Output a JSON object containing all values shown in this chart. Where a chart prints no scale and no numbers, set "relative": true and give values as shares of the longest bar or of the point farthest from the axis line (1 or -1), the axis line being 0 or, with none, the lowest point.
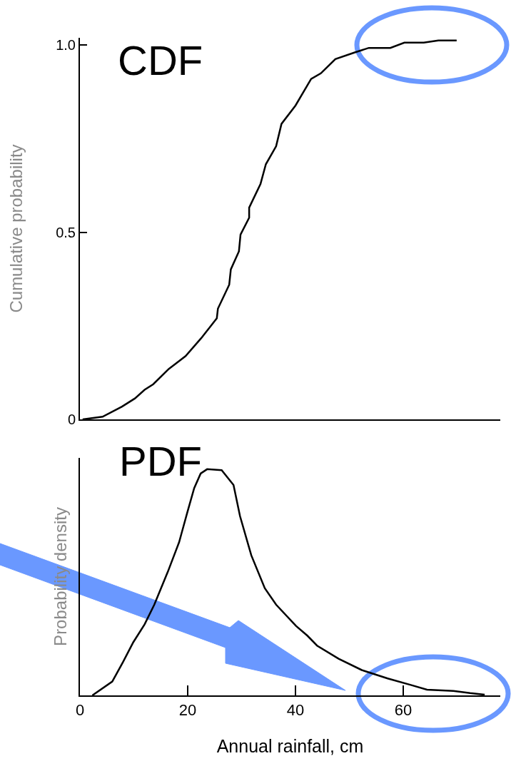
{
  "chart_data": [
    {
      "type": "line",
      "title": "CDF",
      "ylabel": "Cumulative probability",
      "xlim": [
        0,
        78
      ],
      "ylim": [
        0,
        1.02
      ],
      "yticks": [
        0,
        0.5,
        {
          "value": 1,
          "label": "1.0"
        }
      ],
      "tick_labels": "y",
      "grid": false,
      "marker": "none",
      "line_style": "solid",
      "x": [
        0.5,
        4.2,
        7.8,
        10.2,
        12.0,
        13.6,
        16.5,
        19.6,
        22.5,
        25.4,
        25.6,
        27.7,
        28.0,
        29.5,
        29.8,
        31.4,
        31.4,
        33.5,
        34.5,
        36.4,
        37.4,
        40.0,
        42.9,
        44.7,
        47.4,
        51.0,
        53.6,
        57.6,
        60.2,
        63.8,
        66.5,
        69.9
      ],
      "series": [
        {
          "color": "#000000",
          "values": [
            0,
            0.007,
            0.034,
            0.056,
            0.079,
            0.094,
            0.135,
            0.169,
            0.217,
            0.27,
            0.296,
            0.36,
            0.401,
            0.449,
            0.494,
            0.539,
            0.566,
            0.629,
            0.682,
            0.73,
            0.79,
            0.839,
            0.91,
            0.925,
            0.963,
            0.981,
            0.993,
            0.993,
            1.007,
            1.007,
            1.013,
            1.013
          ]
        }
      ]
    },
    {
      "type": "line",
      "title": "PDF",
      "ylabel": "Probability density",
      "xlabel": "Annual rainfall, cm",
      "relative": true,
      "xlim": [
        0,
        78
      ],
      "xticks": [
        0,
        20,
        40,
        60
      ],
      "tick_labels": "x",
      "grid": false,
      "marker": "none",
      "line_style": "solid",
      "x": [
        2.3,
        6.0,
        8.0,
        9.9,
        12.0,
        13.8,
        16.3,
        18.4,
        19.9,
        21.2,
        22.4,
        23.6,
        26.3,
        28.5,
        29.7,
        31.8,
        34.3,
        36.4,
        40.1,
        42.2,
        44.0,
        48.0,
        52.3,
        57.1,
        61.4,
        64.4,
        69.3,
        72.4,
        75.1
      ],
      "series": [
        {
          "color": "#000000",
          "values": [
            0,
            0.061,
            0.148,
            0.235,
            0.314,
            0.401,
            0.546,
            0.677,
            0.807,
            0.916,
            0.981,
            1.0,
            0.996,
            0.93,
            0.793,
            0.619,
            0.474,
            0.401,
            0.307,
            0.264,
            0.22,
            0.162,
            0.112,
            0.075,
            0.046,
            0.025,
            0.02,
            0.01,
            0.003
          ]
        }
      ]
    }
  ]
}
